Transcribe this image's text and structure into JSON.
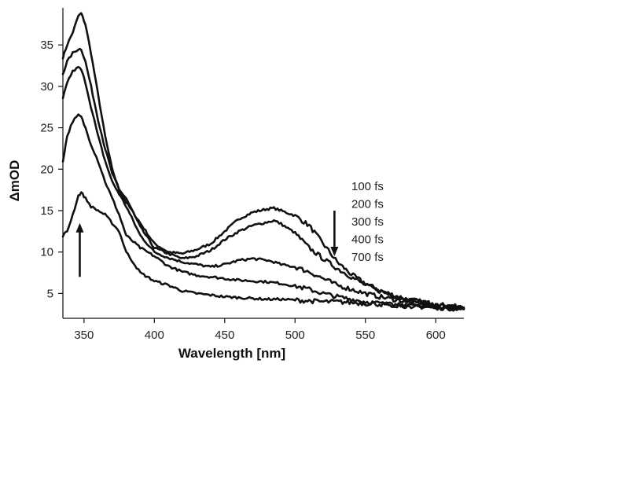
{
  "chart_data": {
    "type": "line",
    "title": "",
    "xlabel": "Wavelength [nm]",
    "ylabel": "ΔmOD",
    "xlim": [
      335,
      620
    ],
    "ylim": [
      2,
      39
    ],
    "xticks": [
      350,
      400,
      450,
      500,
      550,
      600
    ],
    "yticks": [
      5,
      10,
      15,
      20,
      25,
      30,
      35
    ],
    "grid": false,
    "legend_position": "right",
    "legend": [
      "100 fs",
      "200 fs",
      "300 fs",
      "400 fs",
      "700 fs"
    ],
    "annotations": [
      {
        "type": "arrow-up",
        "x": 347,
        "y_from": 7,
        "y_to": 13.5
      },
      {
        "type": "arrow-down",
        "x": 528,
        "y_from": 15,
        "y_to": 9.5
      }
    ],
    "series": [
      {
        "x": [
          335,
          338,
          342,
          346,
          348,
          351,
          355,
          360,
          365,
          370,
          375,
          380,
          390,
          400,
          410,
          420,
          430,
          440,
          450,
          460,
          470,
          480,
          485,
          490,
          500,
          510,
          520,
          530,
          540,
          550,
          560,
          570,
          580,
          590,
          600,
          610,
          620
        ],
        "values": [
          33.5,
          35,
          36.5,
          38.5,
          38.8,
          37.5,
          34,
          29,
          24,
          20,
          17.5,
          16,
          13.5,
          11,
          10,
          9.8,
          10.3,
          11,
          12.5,
          14,
          14.8,
          15.2,
          15.3,
          15,
          14.4,
          13.2,
          11,
          8.8,
          7.3,
          6.2,
          5.4,
          4.8,
          4.3,
          4,
          3.7,
          3.5,
          3.3
        ]
      },
      {
        "x": [
          335,
          338,
          342,
          346,
          348,
          351,
          355,
          360,
          365,
          370,
          375,
          380,
          390,
          400,
          410,
          420,
          430,
          440,
          450,
          460,
          470,
          480,
          485,
          490,
          500,
          510,
          520,
          530,
          540,
          550,
          560,
          570,
          580,
          590,
          600,
          610,
          620
        ],
        "values": [
          31.5,
          33,
          34,
          34.5,
          34.5,
          33,
          30,
          26,
          22.5,
          19.5,
          17.5,
          16.5,
          13,
          10.5,
          9.8,
          9.2,
          9.5,
          10.2,
          11.5,
          12.5,
          13.2,
          13.6,
          13.8,
          13.4,
          12.3,
          10.5,
          9.2,
          8,
          7,
          6,
          5.3,
          4.7,
          4.2,
          3.9,
          3.6,
          3.4,
          3.2
        ]
      },
      {
        "x": [
          335,
          338,
          342,
          346,
          348,
          351,
          355,
          360,
          365,
          370,
          375,
          380,
          390,
          400,
          410,
          420,
          430,
          440,
          450,
          460,
          470,
          480,
          485,
          490,
          500,
          510,
          520,
          530,
          540,
          550,
          560,
          570,
          580,
          590,
          600,
          610,
          620
        ],
        "values": [
          28.5,
          30.5,
          31.8,
          32.3,
          32,
          30.5,
          27.5,
          24,
          21,
          18.5,
          17,
          15.5,
          12,
          10,
          9.3,
          8.8,
          8.5,
          8.2,
          8.5,
          9,
          9.2,
          9,
          8.8,
          8.5,
          8.2,
          7.6,
          6.8,
          6,
          5.5,
          5,
          4.6,
          4.3,
          4,
          3.8,
          3.5,
          3.3,
          3.2
        ]
      },
      {
        "x": [
          335,
          338,
          342,
          346,
          348,
          351,
          355,
          360,
          365,
          370,
          375,
          380,
          390,
          400,
          410,
          420,
          430,
          440,
          450,
          460,
          470,
          480,
          485,
          490,
          500,
          510,
          520,
          530,
          540,
          550,
          560,
          570,
          580,
          590,
          600,
          610,
          620
        ],
        "values": [
          21,
          24,
          25.8,
          26.5,
          26.3,
          25,
          23,
          21,
          18.5,
          16.5,
          14.5,
          12,
          10.5,
          9.5,
          8.3,
          7.6,
          7.2,
          7,
          6.8,
          6.6,
          6.5,
          6.4,
          6.3,
          6.2,
          5.9,
          5.5,
          5,
          4.6,
          4.3,
          4,
          3.8,
          3.6,
          3.5,
          3.4,
          3.3,
          3.2,
          3.1
        ]
      },
      {
        "x": [
          335,
          338,
          342,
          346,
          348,
          351,
          355,
          360,
          365,
          370,
          375,
          380,
          390,
          400,
          410,
          420,
          430,
          440,
          450,
          460,
          470,
          480,
          485,
          490,
          500,
          510,
          520,
          530,
          540,
          550,
          560,
          570,
          580,
          590,
          600,
          610,
          620
        ],
        "values": [
          12,
          12.5,
          14.5,
          16.8,
          17.2,
          16.5,
          15.5,
          15,
          14.5,
          13.5,
          12.5,
          10,
          7.5,
          6.5,
          6,
          5.3,
          5,
          4.8,
          4.6,
          4.5,
          4.4,
          4.3,
          4.3,
          4.3,
          4.2,
          4.1,
          4,
          4,
          3.9,
          3.8,
          3.7,
          3.6,
          3.5,
          3.4,
          3.3,
          3.2,
          3.1
        ]
      }
    ]
  }
}
